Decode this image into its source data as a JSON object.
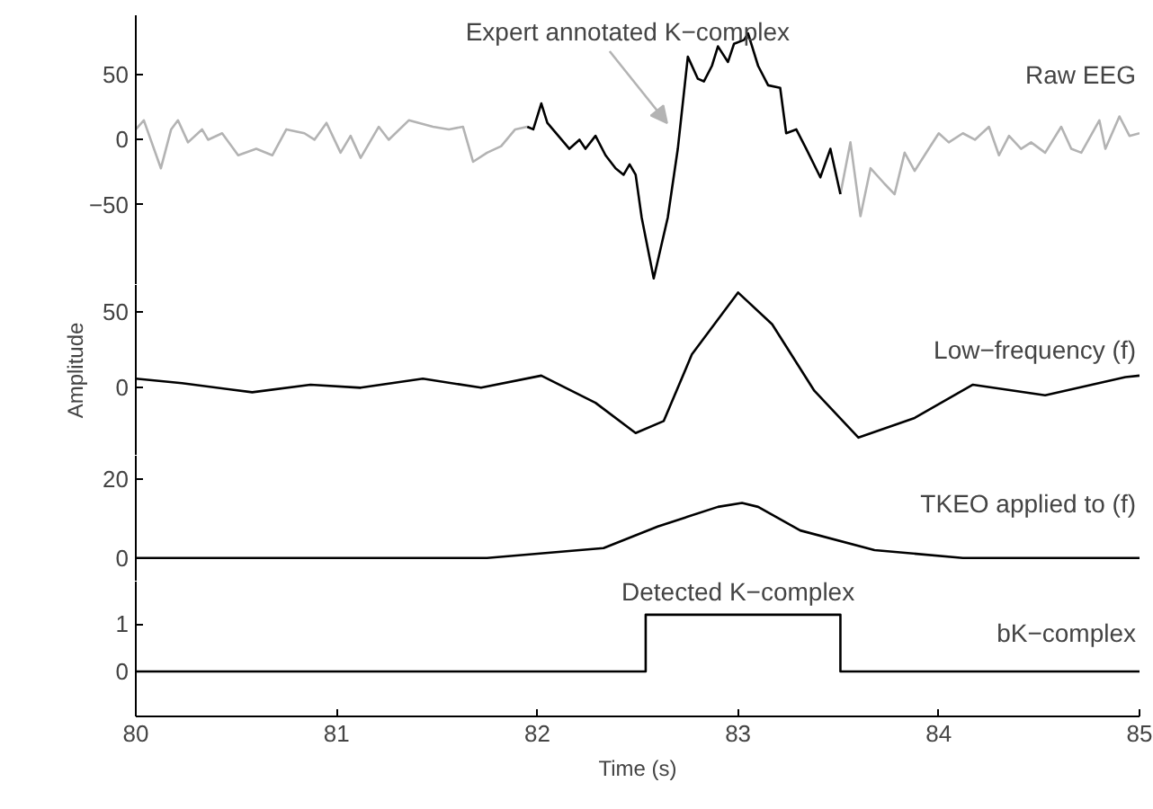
{
  "chart_data": [
    {
      "type": "line",
      "xlim": [
        80,
        85
      ],
      "ylim": [
        -112,
        96
      ],
      "yticks": [
        -50,
        0,
        50
      ],
      "tick_labels": "y",
      "annotations": [
        "Expert annotated K−complex"
      ],
      "series": [
        {
          "name": "Raw EEG",
          "color": "#b3b3b3",
          "x": [
            80.0,
            80.04,
            80.125,
            80.176,
            80.21,
            80.26,
            80.33,
            80.36,
            80.43,
            80.51,
            80.6,
            80.68,
            80.75,
            80.84,
            80.89,
            80.95,
            81.02,
            81.07,
            81.12,
            81.21,
            81.26,
            81.36,
            81.48,
            81.56,
            81.63,
            81.68,
            81.75,
            81.82,
            81.89,
            81.95,
            82.7,
            83.51,
            83.56,
            83.61,
            83.66,
            83.73,
            83.78,
            83.83,
            83.88,
            83.95,
            84.0,
            84.05,
            84.12,
            84.18,
            84.25,
            84.3,
            84.35,
            84.41,
            84.46,
            84.53,
            84.61,
            84.66,
            84.71,
            84.8,
            84.83,
            84.9,
            84.95,
            85.0
          ],
          "values": [
            8,
            15,
            -22,
            8,
            15,
            -2,
            8,
            0,
            5,
            -12,
            -7,
            -12,
            8,
            5,
            0,
            13,
            -10,
            3,
            -14,
            10,
            0,
            15,
            10,
            8,
            10,
            -17,
            -10,
            -5,
            8,
            10,
            null,
            -42,
            -2,
            -59,
            -22,
            -34,
            -42,
            -10,
            -24,
            -7,
            5,
            -2,
            5,
            0,
            10,
            -12,
            3,
            -7,
            -2,
            -10,
            10,
            -7,
            -10,
            15,
            -7,
            18,
            3,
            5
          ]
        },
        {
          "color": "#000000",
          "x": [
            81.95,
            81.98,
            82.02,
            82.05,
            82.16,
            82.21,
            82.24,
            82.29,
            82.34,
            82.39,
            82.43,
            82.46,
            82.49,
            82.52,
            82.58,
            82.65,
            82.7,
            82.75,
            82.8,
            82.83,
            82.87,
            82.9,
            82.95,
            82.98,
            83.03,
            83.05,
            83.1,
            83.15,
            83.21,
            83.24,
            83.29,
            83.34,
            83.41,
            83.46,
            83.51
          ],
          "values": [
            10,
            8,
            28,
            13,
            -7,
            0,
            -7,
            3,
            -12,
            -22,
            -27,
            -19,
            -27,
            -60,
            -107,
            -60,
            -7,
            64,
            47,
            45,
            57,
            72,
            60,
            74,
            77,
            82,
            57,
            42,
            40,
            5,
            8,
            -7,
            -29,
            -7,
            -42
          ]
        }
      ]
    },
    {
      "type": "line",
      "xlim": [
        80,
        85
      ],
      "ylim": [
        -45,
        68
      ],
      "yticks": [
        0,
        50
      ],
      "tick_labels": "y",
      "ylabel": "Amplitude",
      "series": [
        {
          "name": "Low−frequency (f)",
          "color": "#000000",
          "x": [
            80.0,
            80.23,
            80.58,
            80.87,
            81.12,
            81.43,
            81.72,
            82.02,
            82.29,
            82.49,
            82.63,
            82.77,
            83.0,
            83.17,
            83.38,
            83.6,
            83.88,
            84.17,
            84.53,
            84.93,
            85.0
          ],
          "values": [
            6,
            3,
            -3,
            2,
            0,
            6,
            0,
            8,
            -10,
            -30,
            -22,
            22,
            63,
            42,
            -2,
            -33,
            -20,
            2,
            -5,
            7,
            8
          ]
        }
      ]
    },
    {
      "type": "line",
      "xlim": [
        80,
        85
      ],
      "ylim": [
        -6,
        26
      ],
      "yticks": [
        0,
        20
      ],
      "tick_labels": "y",
      "series": [
        {
          "name": "TKEO applied to (f)",
          "color": "#000000",
          "x": [
            80.0,
            81.75,
            82.33,
            82.6,
            82.9,
            83.02,
            83.1,
            83.31,
            83.68,
            84.12,
            85.0
          ],
          "values": [
            0,
            0,
            2.5,
            8,
            13,
            14,
            13,
            7,
            2,
            0,
            0
          ]
        }
      ]
    },
    {
      "type": "step",
      "xlim": [
        80,
        85
      ],
      "ylim": [
        -0.95,
        1.9
      ],
      "yticks": [
        0,
        1
      ],
      "xticks": [
        80,
        81,
        82,
        83,
        84,
        85
      ],
      "xlabel": "Time (s)",
      "annotations": [
        {
          "text": "Detected K−complex",
          "x": 83.0,
          "y": 1.2
        }
      ],
      "series": [
        {
          "name": "bK−complex",
          "color": "#000000",
          "x": [
            80.0,
            82.54,
            83.51,
            85.0
          ],
          "values": [
            0,
            1.2,
            0,
            0
          ]
        }
      ]
    }
  ]
}
